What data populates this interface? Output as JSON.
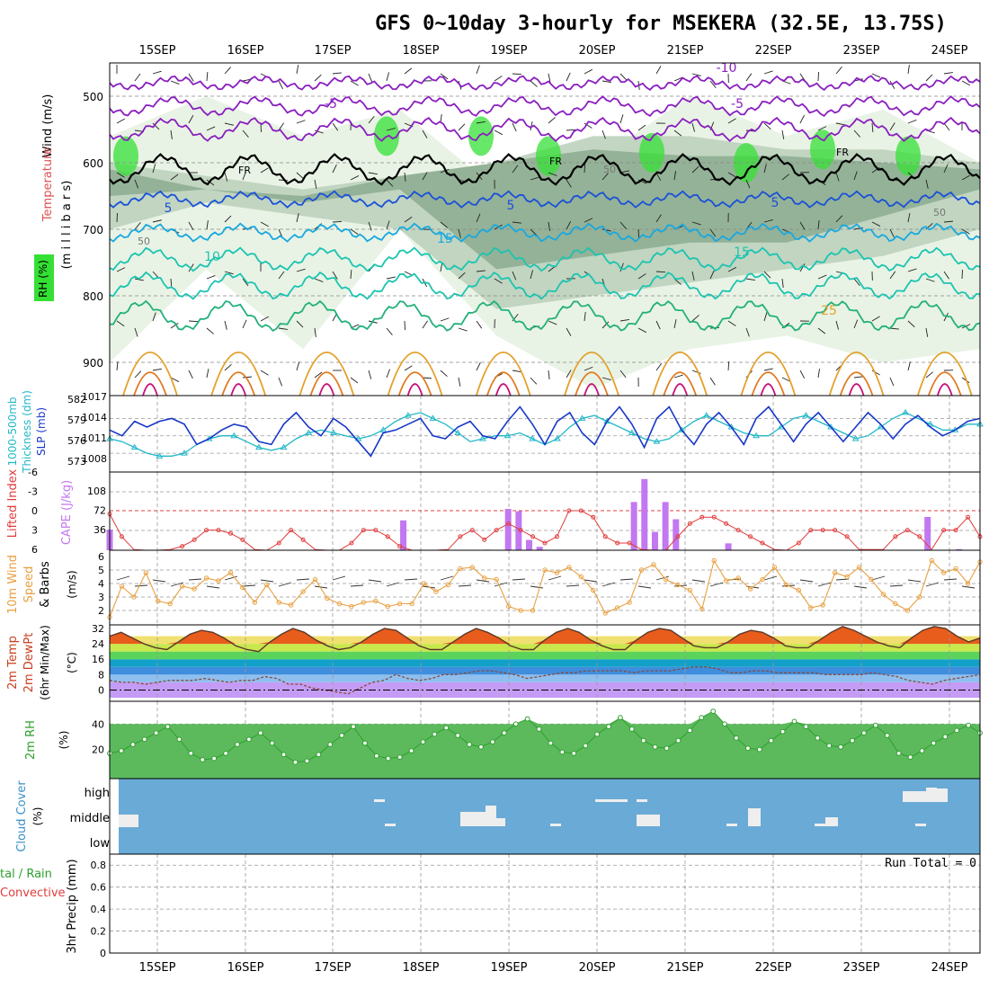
{
  "title": "GFS 0~10day 3-hourly for MSEKERA (32.5E, 13.75S)",
  "dates": [
    "15SEP",
    "16SEP",
    "17SEP",
    "18SEP",
    "19SEP",
    "20SEP",
    "21SEP",
    "22SEP",
    "23SEP",
    "24SEP"
  ],
  "colors": {
    "purple": "#8a1fbf",
    "black": "#000000",
    "blue": "#1a50d8",
    "lightblue": "#19a8df",
    "teal": "#1cc4b0",
    "green": "#23b07a",
    "orange": "#e3a02a",
    "darkorange": "#e07a20",
    "magenta": "#c8107a",
    "rh_light": "#e5f2e2",
    "rh_mid": "#bcd2bc",
    "rh_dark": "#8fae92",
    "rh_bright": "#35e035",
    "cloud_bg": "#6aaad6",
    "cape_bar": "#c278f0",
    "li_line": "#e03c3c",
    "wind_line": "#e8a040",
    "slp_line": "#1838c8",
    "thick_line": "#22b8c8",
    "rh2m": "#2ea02e"
  },
  "labels": {
    "wind": "Wind (m/s)",
    "temperature": "Temperature (°C)",
    "rh": "RH (%)",
    "millibars": "(m i l l i b a r s)",
    "thickness": "1000-500mb Thickness (dm)",
    "slp": "SLP (mb)",
    "lifted": "Lifted Index",
    "cape": "CAPE (J/kg)",
    "wind10_a": "10m Wind",
    "wind10_b": "Speed",
    "wind10_c": "& Barbs",
    "wind10_unit": "(m/s)",
    "t2m_a": "2m Temp",
    "t2m_b": "2m DewPt",
    "t2m_c": "(6hr Min/Max)",
    "t2m_unit": "(°C)",
    "rh2m": "2m RH",
    "rh2m_unit": "(%)",
    "cloud": "Cloud Cover",
    "cloud_unit": "(%)",
    "precip_a": "tal / Rain",
    "precip_b": "Convective",
    "precip_unit": "3hr Precip (mm)",
    "run_total": "Run Total = 0",
    "fr": "FR"
  },
  "chart_data": [
    {
      "type": "line",
      "panel": "upper-air cross-section",
      "ylabel": "millibars",
      "y_ticks": [
        "500",
        "600",
        "700",
        "800",
        "900"
      ],
      "ylim": [
        450,
        950
      ],
      "isotherm_labels": [
        "-10",
        "-5",
        "-5",
        "5",
        "5",
        "5",
        "5",
        "10",
        "15",
        "15",
        "25",
        "FR",
        "FR",
        "FR",
        "50",
        "50",
        "50"
      ]
    },
    {
      "type": "line",
      "panel": "thickness-slp",
      "y_left_ticks": [
        "582",
        "579",
        "576",
        "573"
      ],
      "y_right_ticks": [
        "1017",
        "1014",
        "1011",
        "1008"
      ],
      "series": [
        {
          "name": "SLP",
          "values": [
            1012,
            1011,
            1013.5,
            1012.5,
            1013.5,
            1014,
            1013,
            1009.5,
            1010.5,
            1012,
            1013,
            1012.5,
            1010,
            1009.5,
            1013,
            1015,
            1012.5,
            1011,
            1014,
            1012.5,
            1010,
            1007.5,
            1011.5,
            1012,
            1013,
            1014,
            1011,
            1010.5,
            1012.5,
            1013.5,
            1011,
            1010.5,
            1013.5,
            1016,
            1013,
            1009.5,
            1013.5,
            1015,
            1011.5,
            1009.5,
            1013.5,
            1016,
            1013,
            1009,
            1014,
            1016,
            1012,
            1009.5,
            1013,
            1015,
            1012.5,
            1009.5,
            1014,
            1016,
            1013,
            1010,
            1013,
            1015,
            1012.5,
            1010,
            1012.5,
            1015,
            1013,
            1010.5,
            1013,
            1014.5,
            1012.5,
            1011,
            1012,
            1013.5,
            1014
          ]
        },
        {
          "name": "Thickness",
          "values": [
            575.5,
            575,
            574,
            573,
            572.5,
            572.5,
            573,
            574.5,
            575.5,
            576,
            576,
            575,
            574,
            573.5,
            574,
            575.5,
            576.5,
            577,
            576.5,
            576,
            575.5,
            576,
            577,
            578.5,
            579.5,
            580,
            579,
            578,
            576.5,
            575,
            575.5,
            576,
            576,
            576.5,
            575.5,
            574.5,
            575.5,
            577.5,
            579,
            579.5,
            578.5,
            577.5,
            576.5,
            575.5,
            575,
            575.5,
            577,
            578.5,
            579.5,
            578.5,
            577.5,
            576.5,
            576,
            576,
            577.5,
            579,
            579.5,
            578.5,
            577.5,
            576.5,
            575.5,
            576,
            577.5,
            579,
            580,
            579,
            578,
            577,
            577,
            578,
            578
          ]
        }
      ]
    },
    {
      "type": "bar",
      "panel": "lifted-index-cape",
      "y_left_ticks": [
        "-6",
        "-3",
        "0",
        "3",
        "6"
      ],
      "y_right_ticks": [
        "108",
        "72",
        "36"
      ],
      "series": [
        {
          "name": "CAPE",
          "values": [
            36,
            0,
            0,
            0,
            0,
            0,
            0,
            0,
            0,
            0,
            0,
            0,
            0,
            0,
            0,
            0,
            0,
            0,
            0,
            0,
            0,
            0,
            0,
            0,
            0,
            0,
            0,
            0,
            52,
            0,
            0,
            0,
            0,
            0,
            0,
            0,
            1,
            0,
            72,
            68,
            18,
            6,
            0,
            0,
            0,
            0,
            0,
            0,
            0,
            0,
            84,
            124,
            32,
            84,
            54,
            0,
            0,
            0,
            0,
            12,
            0,
            0,
            0,
            0,
            0,
            0,
            0,
            0,
            0,
            0,
            0,
            0,
            0,
            0,
            0,
            0,
            0,
            0,
            58,
            0,
            0,
            2,
            0,
            0
          ]
        },
        {
          "name": "Lifted Index",
          "values": [
            0.5,
            4,
            6,
            7,
            7,
            6,
            5.5,
            4.5,
            3,
            3,
            3.5,
            4.5,
            6,
            7,
            5,
            3,
            4.5,
            6,
            7,
            7,
            5,
            3,
            3,
            4,
            5.5,
            7,
            8,
            8,
            6,
            4,
            3,
            4.5,
            3,
            2,
            3,
            4,
            5,
            4,
            0,
            0,
            1,
            4,
            5,
            5,
            6,
            8,
            7,
            4,
            2,
            1,
            1,
            2,
            3,
            4,
            5,
            6,
            7,
            5,
            3,
            3,
            3,
            4,
            6,
            6,
            6,
            4,
            3,
            4,
            6,
            3,
            3,
            1,
            4
          ]
        }
      ]
    },
    {
      "type": "line",
      "panel": "10m wind",
      "y_ticks": [
        "6",
        "5",
        "4",
        "3",
        "2"
      ],
      "series": [
        {
          "name": "10m Wind Speed",
          "values": [
            1.5,
            3.8,
            3,
            4.8,
            2.7,
            2.5,
            3.8,
            3.6,
            4.4,
            4.2,
            4.8,
            3.7,
            2.6,
            3.9,
            2.6,
            2.4,
            3.4,
            4.3,
            2.9,
            2.5,
            2.3,
            2.6,
            2.7,
            2.3,
            2.5,
            2.5,
            4,
            3.4,
            3.9,
            5.1,
            5.2,
            4.4,
            4.3,
            2.3,
            2,
            2,
            5,
            4.8,
            5.2,
            4.5,
            3.5,
            1.8,
            2.2,
            2.6,
            5,
            5.4,
            4.3,
            3.9,
            3.5,
            2.1,
            5.7,
            4.2,
            4.4,
            3.6,
            4.3,
            5.2,
            3.9,
            3.5,
            2.2,
            2.4,
            4.8,
            4.5,
            5.2,
            4.3,
            3.2,
            2.5,
            2,
            3,
            5.7,
            4.8,
            5.1,
            4,
            5.6
          ]
        }
      ]
    },
    {
      "type": "area",
      "panel": "2m temp",
      "y_ticks": [
        "32",
        "24",
        "16",
        "8",
        "0"
      ],
      "series": [
        {
          "name": "2m Temp",
          "values": [
            28,
            30,
            27,
            24,
            22,
            21,
            25,
            29,
            31,
            30,
            27,
            23,
            21,
            20,
            25,
            29,
            32,
            30,
            26,
            23,
            21,
            22,
            25,
            29,
            32,
            31,
            27,
            23,
            21,
            21,
            25,
            29,
            32,
            30,
            27,
            23,
            21,
            21,
            26,
            30,
            32,
            30,
            26,
            23,
            21,
            21,
            26,
            30,
            32,
            31,
            27,
            23,
            22,
            22,
            25,
            29,
            31,
            30,
            27,
            23,
            22,
            22,
            26,
            30,
            33,
            31,
            28,
            25,
            23,
            22,
            27,
            31,
            33,
            32,
            28,
            25,
            27
          ]
        },
        {
          "name": "2m DewPt",
          "values": [
            5,
            4,
            4,
            3,
            4,
            5,
            5,
            5,
            6,
            5,
            4,
            5,
            5,
            7,
            6,
            3,
            3,
            1,
            0,
            -1,
            -2,
            1,
            4,
            5,
            8,
            6,
            5,
            6,
            8,
            8,
            9,
            10,
            10,
            9,
            8,
            6,
            7,
            8,
            9,
            9,
            10,
            10,
            10,
            10,
            9,
            10,
            10,
            10,
            11,
            12,
            12,
            11,
            9,
            9,
            10,
            10,
            9,
            9,
            9,
            9,
            8,
            8,
            8,
            8,
            9,
            8,
            7,
            5,
            4,
            3,
            5,
            6,
            7,
            8
          ]
        }
      ]
    },
    {
      "type": "area",
      "panel": "2m RH",
      "y_ticks": [
        "40",
        "20"
      ],
      "series": [
        {
          "name": "2m RH",
          "values": [
            17,
            19,
            24,
            28,
            33,
            38,
            28,
            17,
            12,
            13,
            17,
            24,
            28,
            33,
            25,
            16,
            10,
            11,
            16,
            24,
            31,
            38,
            25,
            15,
            13,
            14,
            19,
            26,
            32,
            37,
            31,
            24,
            22,
            26,
            33,
            40,
            44,
            36,
            25,
            18,
            17,
            23,
            32,
            38,
            45,
            36,
            27,
            22,
            21,
            27,
            35,
            45,
            50,
            40,
            29,
            21,
            20,
            27,
            34,
            42,
            38,
            29,
            23,
            22,
            27,
            33,
            39,
            31,
            17,
            14,
            19,
            25,
            30,
            35,
            39,
            33
          ]
        }
      ]
    },
    {
      "type": "bar",
      "panel": "cloud cover",
      "y_ticks": [
        "high",
        "middle",
        "low"
      ]
    },
    {
      "type": "bar",
      "panel": "3hr precip",
      "y_ticks": [
        "0.8",
        "0.6",
        "0.4",
        "0.2",
        "0"
      ],
      "ylim": [
        0,
        0.9
      ],
      "values": []
    }
  ]
}
